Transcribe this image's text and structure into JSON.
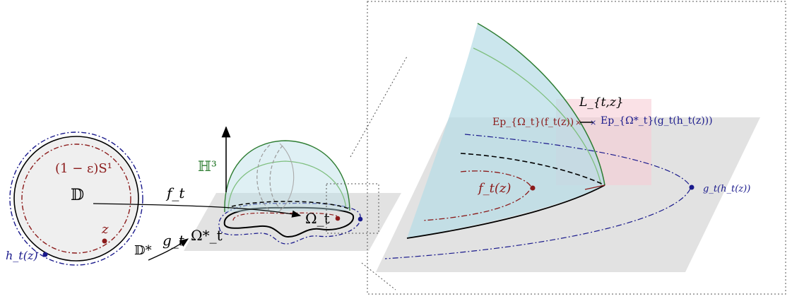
{
  "labels": {
    "disk": "𝔻",
    "disk_star": "𝔻*",
    "shrunk_circle": "(1 − ε)S¹",
    "z": "z",
    "h_t_z": "h_t(z)",
    "f_t_map": "f_t",
    "g_t_map": "g_t",
    "omega_t": "Ω_t",
    "omega_t_star": "Ω*_t",
    "hyperbolic_space": "ℍ³",
    "L_tz": "L_{t,z}",
    "ep_omega": "Ep_{Ω_t}(f_t(z))",
    "ep_omega_star": "Ep_{Ω*_t}(g_t(h_t(z)))",
    "f_t_z": "f_t(z)",
    "g_t_h_t_z": "g_t(h_t(z))"
  },
  "colors": {
    "dark_red": "#8b1a1a",
    "navy": "#1a1a8c",
    "green": "#2e7d32",
    "light_green": "#7fbf7f",
    "plane_gray": "#e0e0e0",
    "dome_cyan": "#b7dde6",
    "pink_box": "#f6cdd6"
  }
}
